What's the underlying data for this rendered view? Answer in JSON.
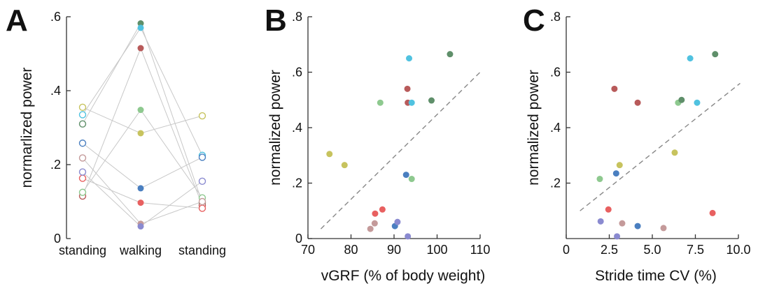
{
  "chart_data": [
    {
      "panel": "A",
      "type": "line",
      "xlabel": "",
      "ylabel": "normarlized power",
      "categories": [
        "standing",
        "walking",
        "standing"
      ],
      "ylim": [
        0,
        0.6
      ],
      "yticks": [
        0,
        0.2,
        0.4,
        0.6
      ],
      "ytick_labels": [
        "0",
        ".2",
        ".4",
        ".6"
      ],
      "series": [
        {
          "color": "#5f8f6a",
          "values": [
            0.31,
            0.582,
            0.097
          ]
        },
        {
          "color": "#50c2e0",
          "values": [
            0.335,
            0.57,
            0.225
          ]
        },
        {
          "color": "#b85a5a",
          "values": [
            0.115,
            0.515,
            0.09
          ]
        },
        {
          "color": "#8ec98f",
          "values": [
            0.125,
            0.348,
            0.11
          ]
        },
        {
          "color": "#c7c35e",
          "values": [
            0.355,
            0.285,
            0.332
          ]
        },
        {
          "color": "#4a7fc0",
          "values": [
            0.258,
            0.136,
            0.22
          ]
        },
        {
          "color": "#e86060",
          "values": [
            0.163,
            0.097,
            0.082
          ]
        },
        {
          "color": "#c49a9a",
          "values": [
            0.218,
            0.04,
            0.1
          ]
        },
        {
          "color": "#8a8ad0",
          "values": [
            0.18,
            0.033,
            0.155
          ]
        }
      ]
    },
    {
      "panel": "B",
      "type": "scatter",
      "xlabel": "vGRF (% of body weight)",
      "ylabel": "normalized power",
      "xlim": [
        70,
        110
      ],
      "ylim": [
        0,
        0.8
      ],
      "xticks": [
        70,
        80,
        90,
        100,
        110
      ],
      "xtick_labels": [
        "70",
        "80",
        "90",
        "100",
        "110"
      ],
      "yticks": [
        0,
        0.2,
        0.4,
        0.6,
        0.8
      ],
      "ytick_labels": [
        "0",
        ".2",
        ".4",
        ".6",
        ".8"
      ],
      "fit_line": {
        "x": [
          73,
          110
        ],
        "y": [
          0.035,
          0.6
        ]
      },
      "points": [
        {
          "x": 75,
          "y": 0.305,
          "color": "#c7c35e"
        },
        {
          "x": 78.5,
          "y": 0.265,
          "color": "#c7c35e"
        },
        {
          "x": 84.5,
          "y": 0.035,
          "color": "#c49a9a"
        },
        {
          "x": 85.5,
          "y": 0.055,
          "color": "#c49a9a"
        },
        {
          "x": 85.6,
          "y": 0.09,
          "color": "#e86060"
        },
        {
          "x": 86.8,
          "y": 0.49,
          "color": "#8ec98f"
        },
        {
          "x": 87.3,
          "y": 0.105,
          "color": "#e86060"
        },
        {
          "x": 90.2,
          "y": 0.045,
          "color": "#4a7fc0"
        },
        {
          "x": 90.8,
          "y": 0.06,
          "color": "#8a8ad0"
        },
        {
          "x": 92.8,
          "y": 0.23,
          "color": "#4a7fc0"
        },
        {
          "x": 93.1,
          "y": 0.54,
          "color": "#b85a5a"
        },
        {
          "x": 93.2,
          "y": 0.49,
          "color": "#b85a5a"
        },
        {
          "x": 93.2,
          "y": 0.008,
          "color": "#8a8ad0"
        },
        {
          "x": 93.5,
          "y": 0.65,
          "color": "#50c2e0"
        },
        {
          "x": 94.1,
          "y": 0.49,
          "color": "#50c2e0"
        },
        {
          "x": 94.1,
          "y": 0.215,
          "color": "#8ec98f"
        },
        {
          "x": 98.7,
          "y": 0.498,
          "color": "#5f8f6a"
        },
        {
          "x": 103,
          "y": 0.665,
          "color": "#5f8f6a"
        }
      ]
    },
    {
      "panel": "C",
      "type": "scatter",
      "xlabel": "Stride time CV (%)",
      "ylabel": "normalized power",
      "xlim": [
        0,
        10
      ],
      "ylim": [
        0,
        0.8
      ],
      "xticks": [
        0,
        2.5,
        5,
        7.5,
        10
      ],
      "xtick_labels": [
        "0",
        "2.5",
        "5.0",
        "7.5",
        "10.0"
      ],
      "yticks": [
        0.2,
        0.4,
        0.6,
        0.8
      ],
      "ytick_labels": [
        ".2",
        ".4",
        ".6",
        ".8"
      ],
      "fit_line": {
        "x": [
          0.8,
          10.1
        ],
        "y": [
          0.1,
          0.56
        ]
      },
      "points": [
        {
          "x": 1.95,
          "y": 0.215,
          "color": "#8ec98f"
        },
        {
          "x": 2.0,
          "y": 0.062,
          "color": "#8a8ad0"
        },
        {
          "x": 2.45,
          "y": 0.105,
          "color": "#e86060"
        },
        {
          "x": 2.8,
          "y": 0.54,
          "color": "#b85a5a"
        },
        {
          "x": 2.9,
          "y": 0.235,
          "color": "#4a7fc0"
        },
        {
          "x": 2.95,
          "y": 0.008,
          "color": "#8a8ad0"
        },
        {
          "x": 3.1,
          "y": 0.265,
          "color": "#c7c35e"
        },
        {
          "x": 3.25,
          "y": 0.055,
          "color": "#c49a9a"
        },
        {
          "x": 4.15,
          "y": 0.49,
          "color": "#b85a5a"
        },
        {
          "x": 4.15,
          "y": 0.045,
          "color": "#4a7fc0"
        },
        {
          "x": 5.65,
          "y": 0.038,
          "color": "#c49a9a"
        },
        {
          "x": 6.3,
          "y": 0.31,
          "color": "#c7c35e"
        },
        {
          "x": 6.5,
          "y": 0.49,
          "color": "#8ec98f"
        },
        {
          "x": 6.7,
          "y": 0.5,
          "color": "#5f8f6a"
        },
        {
          "x": 7.2,
          "y": 0.65,
          "color": "#50c2e0"
        },
        {
          "x": 7.6,
          "y": 0.49,
          "color": "#50c2e0"
        },
        {
          "x": 8.5,
          "y": 0.092,
          "color": "#e86060"
        },
        {
          "x": 8.65,
          "y": 0.665,
          "color": "#5f8f6a"
        }
      ]
    }
  ],
  "panels": [
    {
      "letter": "A"
    },
    {
      "letter": "B"
    },
    {
      "letter": "C"
    }
  ]
}
